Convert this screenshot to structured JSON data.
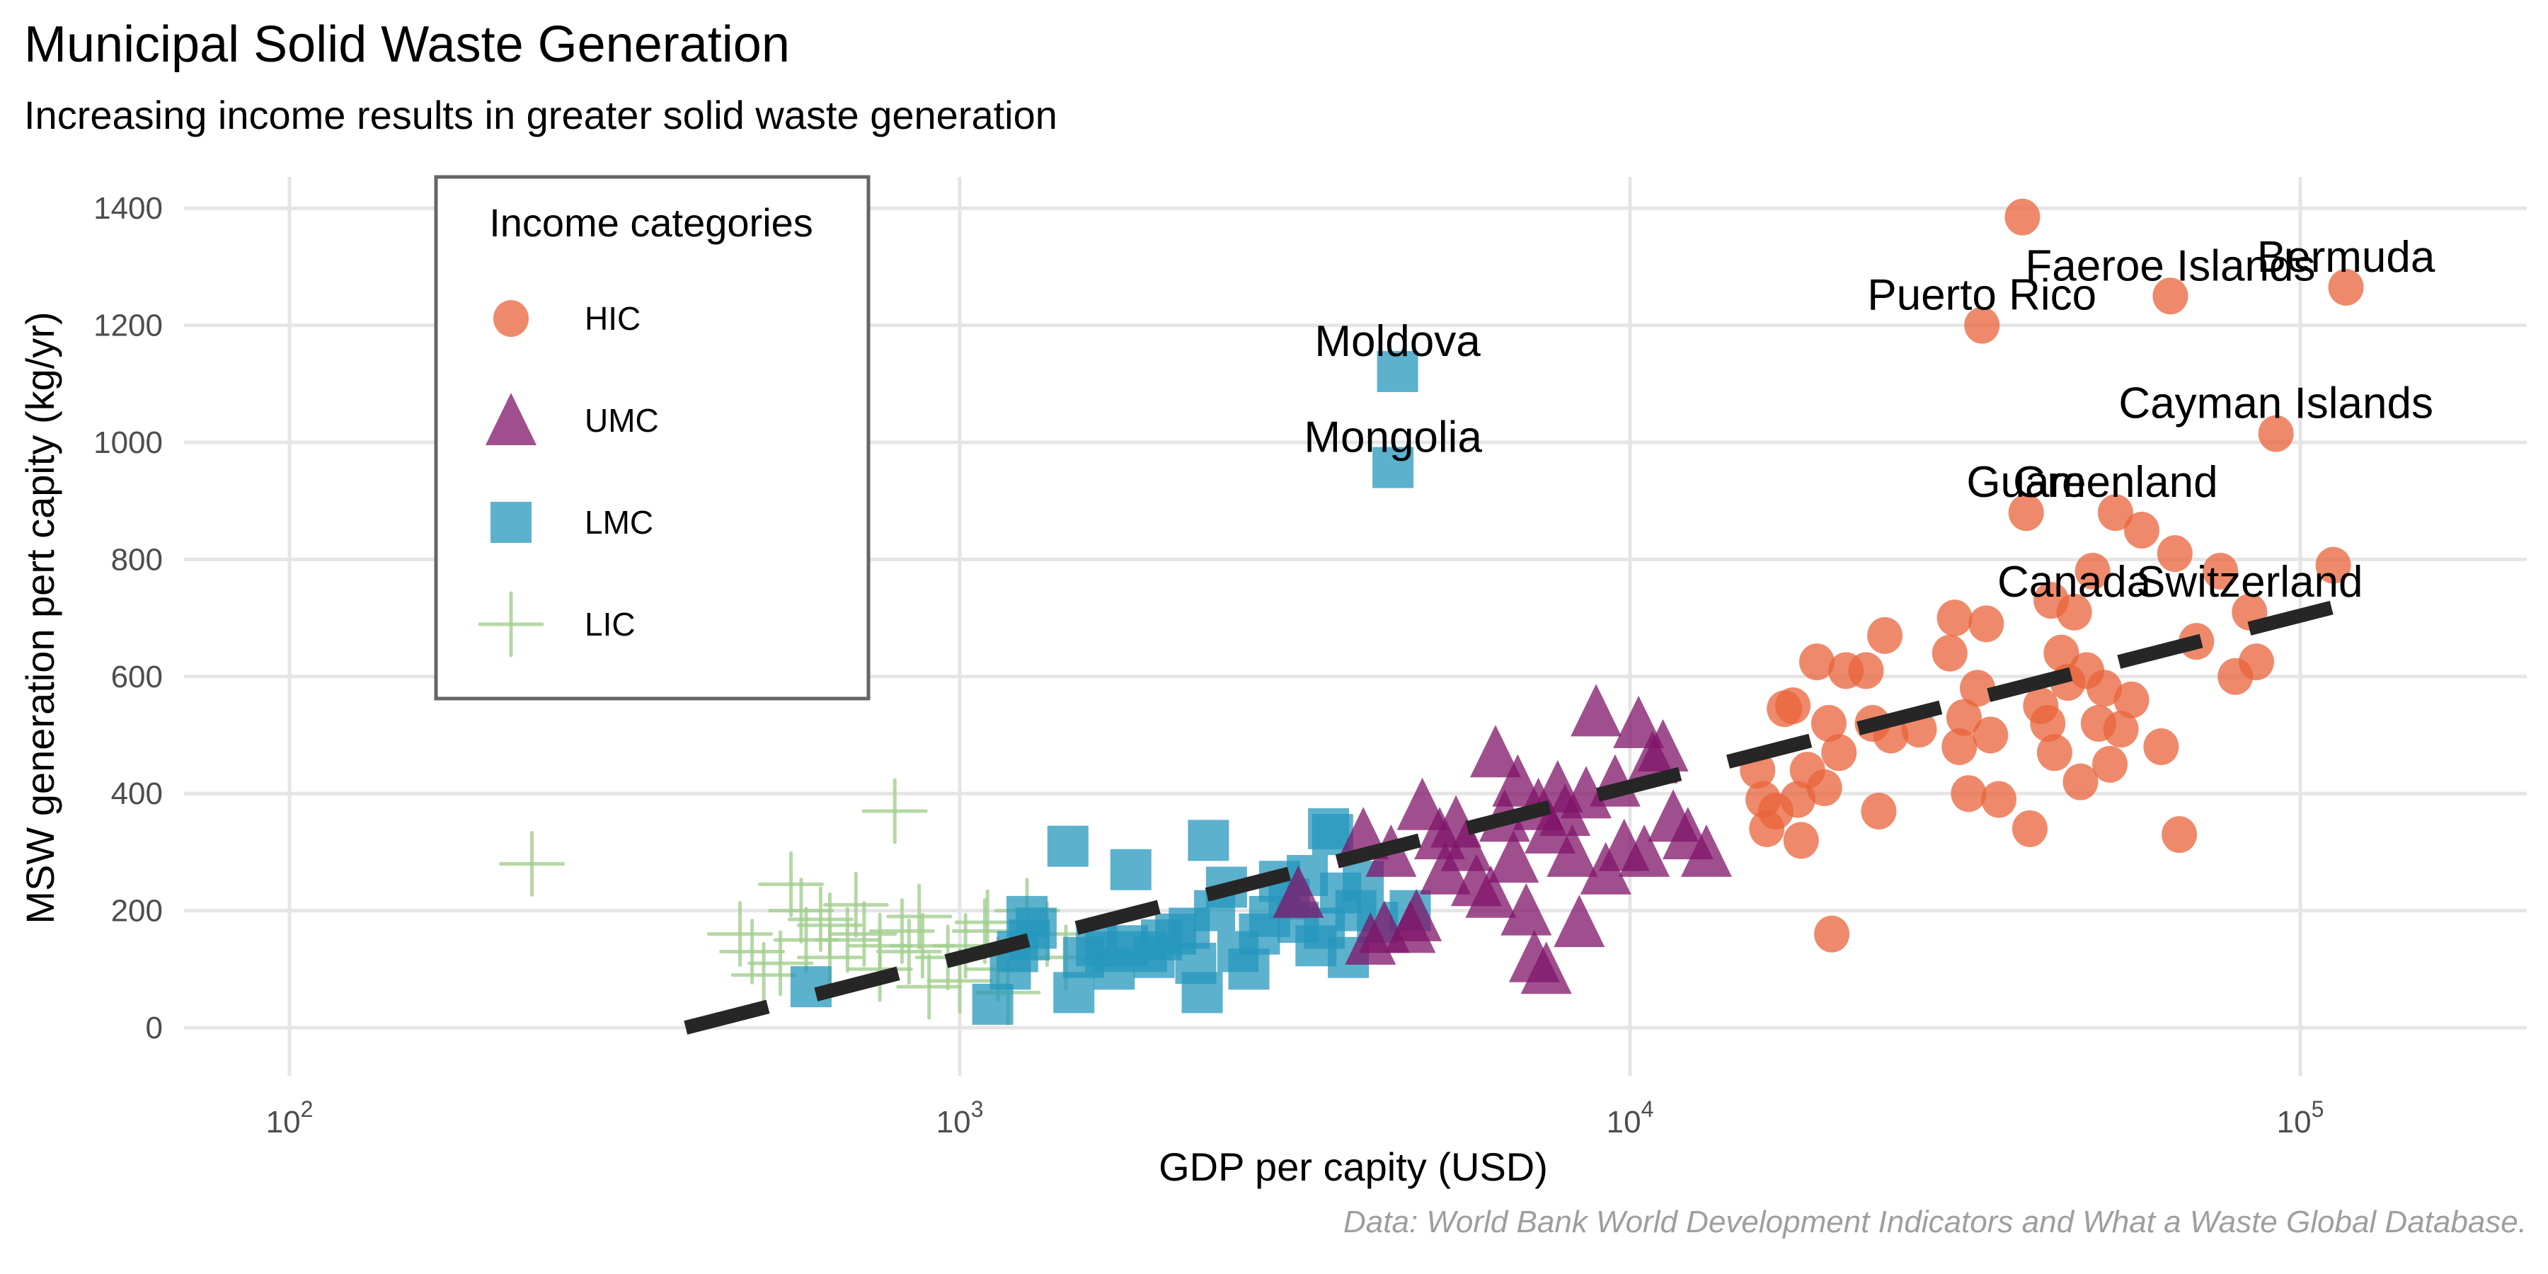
{
  "chart_data": {
    "type": "scatter",
    "title": "Municipal Solid Waste Generation",
    "subtitle": "Increasing income results in greater solid waste generation",
    "caption": "Data: World Bank World Development Indicators and What a Waste Global Database.",
    "xlabel": "GDP per capity (USD)",
    "ylabel": "MSW generation pert capity (kg/yr)",
    "xscale": "log10",
    "xlim": [
      70,
      230000
    ],
    "ylim": [
      -75,
      1475
    ],
    "x_ticks": [
      100,
      1000,
      10000,
      100000
    ],
    "x_tick_labels": [
      {
        "base": "10",
        "exp": "2"
      },
      {
        "base": "10",
        "exp": "3"
      },
      {
        "base": "10",
        "exp": "4"
      },
      {
        "base": "10",
        "exp": "5"
      }
    ],
    "y_ticks": [
      0,
      200,
      400,
      600,
      800,
      1000,
      1200,
      1400
    ],
    "y_tick_labels": [
      "0",
      "200",
      "400",
      "600",
      "800",
      "1000",
      "1200",
      "1400"
    ],
    "grid": true,
    "legend": {
      "title": "Income categories",
      "placement": "top-left",
      "entries": [
        {
          "key": "HIC",
          "label": "HIC",
          "shape": "circle",
          "color": "#E8633A"
        },
        {
          "key": "UMC",
          "label": "UMC",
          "shape": "triangle",
          "color": "#7F1468"
        },
        {
          "key": "LMC",
          "label": "LMC",
          "shape": "square",
          "color": "#2597BC"
        },
        {
          "key": "LIC",
          "label": "LIC",
          "shape": "plus",
          "color": "#A3CE8E"
        }
      ]
    },
    "trend_line": {
      "style": "dashed",
      "color": "#262626",
      "x": [
        390,
        118000
      ],
      "y": [
        0,
        725
      ]
    },
    "series": [
      {
        "name": "LIC",
        "points": [
          [
            230,
            280
          ],
          [
            800,
            370
          ],
          [
            560,
            245
          ],
          [
            470,
            160
          ],
          [
            580,
            200
          ],
          [
            490,
            130
          ],
          [
            620,
            185
          ],
          [
            680,
            150
          ],
          [
            760,
            140
          ],
          [
            820,
            165
          ],
          [
            870,
            190
          ],
          [
            760,
            100
          ],
          [
            640,
            120
          ],
          [
            540,
            110
          ],
          [
            510,
            90
          ],
          [
            720,
            160
          ],
          [
            880,
            140
          ],
          [
            960,
            120
          ],
          [
            1090,
            165
          ],
          [
            1260,
            200
          ],
          [
            1140,
            100
          ],
          [
            1350,
            160
          ],
          [
            1440,
            120
          ],
          [
            1100,
            180
          ],
          [
            900,
            70
          ],
          [
            590,
            150
          ],
          [
            1020,
            140
          ],
          [
            1000,
            80
          ],
          [
            640,
            175
          ],
          [
            700,
            210
          ],
          [
            840,
            130
          ],
          [
            1180,
            60
          ]
        ]
      },
      {
        "name": "LMC",
        "points": [
          [
            600,
            70
          ],
          [
            1120,
            40
          ],
          [
            1190,
            100
          ],
          [
            1220,
            130
          ],
          [
            1260,
            190
          ],
          [
            1270,
            150
          ],
          [
            1300,
            170
          ],
          [
            1450,
            310
          ],
          [
            1480,
            60
          ],
          [
            1530,
            120
          ],
          [
            1600,
            140
          ],
          [
            1650,
            130
          ],
          [
            1700,
            100
          ],
          [
            1780,
            140
          ],
          [
            1800,
            270
          ],
          [
            1900,
            130
          ],
          [
            2000,
            150
          ],
          [
            2100,
            160
          ],
          [
            2200,
            170
          ],
          [
            2300,
            60
          ],
          [
            2350,
            320
          ],
          [
            2400,
            200
          ],
          [
            2500,
            240
          ],
          [
            2600,
            130
          ],
          [
            2700,
            100
          ],
          [
            2800,
            160
          ],
          [
            2900,
            190
          ],
          [
            3000,
            250
          ],
          [
            3100,
            220
          ],
          [
            3200,
            180
          ],
          [
            3300,
            260
          ],
          [
            3400,
            140
          ],
          [
            3500,
            170
          ],
          [
            3600,
            330
          ],
          [
            3700,
            230
          ],
          [
            3800,
            120
          ],
          [
            3900,
            200
          ],
          [
            4000,
            250
          ],
          [
            4200,
            180
          ],
          [
            4500,
            1121
          ],
          [
            4430,
            957
          ],
          [
            4700,
            200
          ],
          [
            3550,
            340
          ],
          [
            2250,
            110
          ],
          [
            1950,
            120
          ]
        ]
      },
      {
        "name": "UMC",
        "points": [
          [
            3200,
            230
          ],
          [
            4000,
            330
          ],
          [
            4100,
            150
          ],
          [
            4300,
            170
          ],
          [
            4400,
            300
          ],
          [
            4700,
            170
          ],
          [
            4800,
            190
          ],
          [
            4900,
            380
          ],
          [
            5200,
            330
          ],
          [
            5300,
            270
          ],
          [
            5500,
            350
          ],
          [
            5700,
            310
          ],
          [
            5900,
            250
          ],
          [
            6200,
            230
          ],
          [
            6300,
            470
          ],
          [
            6500,
            360
          ],
          [
            6700,
            290
          ],
          [
            7000,
            200
          ],
          [
            7200,
            120
          ],
          [
            7500,
            100
          ],
          [
            7600,
            340
          ],
          [
            7800,
            410
          ],
          [
            8000,
            370
          ],
          [
            8200,
            300
          ],
          [
            8400,
            180
          ],
          [
            8600,
            400
          ],
          [
            8900,
            540
          ],
          [
            9200,
            270
          ],
          [
            9500,
            420
          ],
          [
            9800,
            310
          ],
          [
            10300,
            520
          ],
          [
            10500,
            300
          ],
          [
            10800,
            460
          ],
          [
            11200,
            480
          ],
          [
            11600,
            360
          ],
          [
            12200,
            330
          ],
          [
            13000,
            300
          ],
          [
            6800,
            420
          ],
          [
            7300,
            380
          ]
        ]
      },
      {
        "name": "HIC",
        "points": [
          [
            15500,
            440
          ],
          [
            15800,
            390
          ],
          [
            16000,
            340
          ],
          [
            16500,
            370
          ],
          [
            17000,
            545
          ],
          [
            17500,
            550
          ],
          [
            17800,
            390
          ],
          [
            18000,
            320
          ],
          [
            18400,
            440
          ],
          [
            19000,
            625
          ],
          [
            19500,
            410
          ],
          [
            19800,
            520
          ],
          [
            20000,
            160
          ],
          [
            20500,
            470
          ],
          [
            21000,
            610
          ],
          [
            22500,
            610
          ],
          [
            23000,
            520
          ],
          [
            23500,
            370
          ],
          [
            24000,
            670
          ],
          [
            24500,
            500
          ],
          [
            27000,
            510
          ],
          [
            30000,
            640
          ],
          [
            30500,
            700
          ],
          [
            31000,
            480
          ],
          [
            31500,
            530
          ],
          [
            32000,
            400
          ],
          [
            33000,
            580
          ],
          [
            33500,
            1200
          ],
          [
            34000,
            690
          ],
          [
            34500,
            500
          ],
          [
            35500,
            390
          ],
          [
            38500,
            1385
          ],
          [
            39000,
            880
          ],
          [
            39500,
            340
          ],
          [
            41000,
            550
          ],
          [
            42000,
            520
          ],
          [
            42500,
            730
          ],
          [
            43000,
            470
          ],
          [
            44000,
            640
          ],
          [
            45000,
            590
          ],
          [
            46000,
            710
          ],
          [
            47000,
            420
          ],
          [
            48000,
            610
          ],
          [
            49000,
            780
          ],
          [
            50000,
            520
          ],
          [
            51000,
            580
          ],
          [
            52000,
            450
          ],
          [
            53000,
            880
          ],
          [
            54000,
            510
          ],
          [
            56000,
            560
          ],
          [
            58000,
            850
          ],
          [
            62000,
            480
          ],
          [
            64000,
            1250
          ],
          [
            65000,
            810
          ],
          [
            66000,
            330
          ],
          [
            70000,
            660
          ],
          [
            76000,
            780
          ],
          [
            80000,
            600
          ],
          [
            84000,
            710
          ],
          [
            86000,
            625
          ],
          [
            92000,
            1015
          ],
          [
            112000,
            790
          ],
          [
            117000,
            1265
          ]
        ]
      }
    ],
    "annotations": [
      {
        "text": "Moldova",
        "x": 4500,
        "y": 1121
      },
      {
        "text": "Mongolia",
        "x": 4430,
        "y": 957
      },
      {
        "text": "Puerto Rico",
        "x": 33500,
        "y": 1200
      },
      {
        "text": "Faeroe Islands",
        "x": 64000,
        "y": 1250
      },
      {
        "text": "Bermuda",
        "x": 117000,
        "y": 1265
      },
      {
        "text": "Cayman Islands",
        "x": 92000,
        "y": 1015
      },
      {
        "text": "Guam",
        "x": 39000,
        "y": 880
      },
      {
        "text": "Greenland",
        "x": 53000,
        "y": 880
      },
      {
        "text": "Canada",
        "x": 46000,
        "y": 710
      },
      {
        "text": "Switzerland",
        "x": 84000,
        "y": 710
      }
    ]
  }
}
